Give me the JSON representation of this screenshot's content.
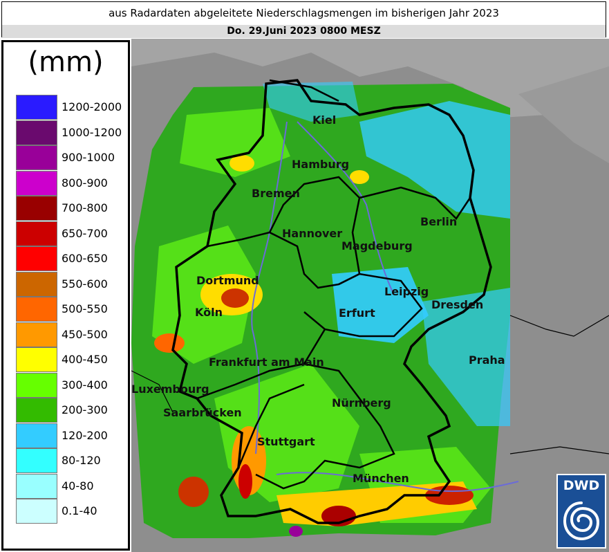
{
  "header": {
    "title": "aus Radardaten abgeleitete Niederschlagsmengen im bisherigen Jahr 2023",
    "subtitle": "Do. 29.Juni 2023 0800 MESZ"
  },
  "legend": {
    "unit": "(mm)",
    "items": [
      {
        "label": "1200-2000",
        "color": "#2a1bff"
      },
      {
        "label": "1000-1200",
        "color": "#6a0a6e"
      },
      {
        "label": "900-1000",
        "color": "#990099"
      },
      {
        "label": "800-900",
        "color": "#cc00cc"
      },
      {
        "label": "700-800",
        "color": "#990000"
      },
      {
        "label": "650-700",
        "color": "#cc0000"
      },
      {
        "label": "600-650",
        "color": "#ff0000"
      },
      {
        "label": "550-600",
        "color": "#cc6600"
      },
      {
        "label": "500-550",
        "color": "#ff6600"
      },
      {
        "label": "450-500",
        "color": "#ff9900"
      },
      {
        "label": "400-450",
        "color": "#ffff00"
      },
      {
        "label": "300-400",
        "color": "#66ff00"
      },
      {
        "label": "200-300",
        "color": "#33bb00"
      },
      {
        "label": "120-200",
        "color": "#33ccff"
      },
      {
        "label": "80-120",
        "color": "#33ffff"
      },
      {
        "label": "40-80",
        "color": "#99ffff"
      },
      {
        "label": "0.1-40",
        "color": "#ccffff"
      }
    ]
  },
  "map": {
    "cities": [
      "Kiel",
      "Hamburg",
      "Bremen",
      "Berlin",
      "Hannover",
      "Magdeburg",
      "Dortmund",
      "Leipzig",
      "Dresden",
      "Köln",
      "Erfurt",
      "Praha",
      "Frankfurt am Main",
      "Luxembourg",
      "Nürnberg",
      "Saarbrücken",
      "Stuttgart",
      "München"
    ]
  },
  "logo": {
    "text": "DWD",
    "colors": {
      "background": "#1a4f96",
      "foreground": "#ffffff"
    }
  }
}
